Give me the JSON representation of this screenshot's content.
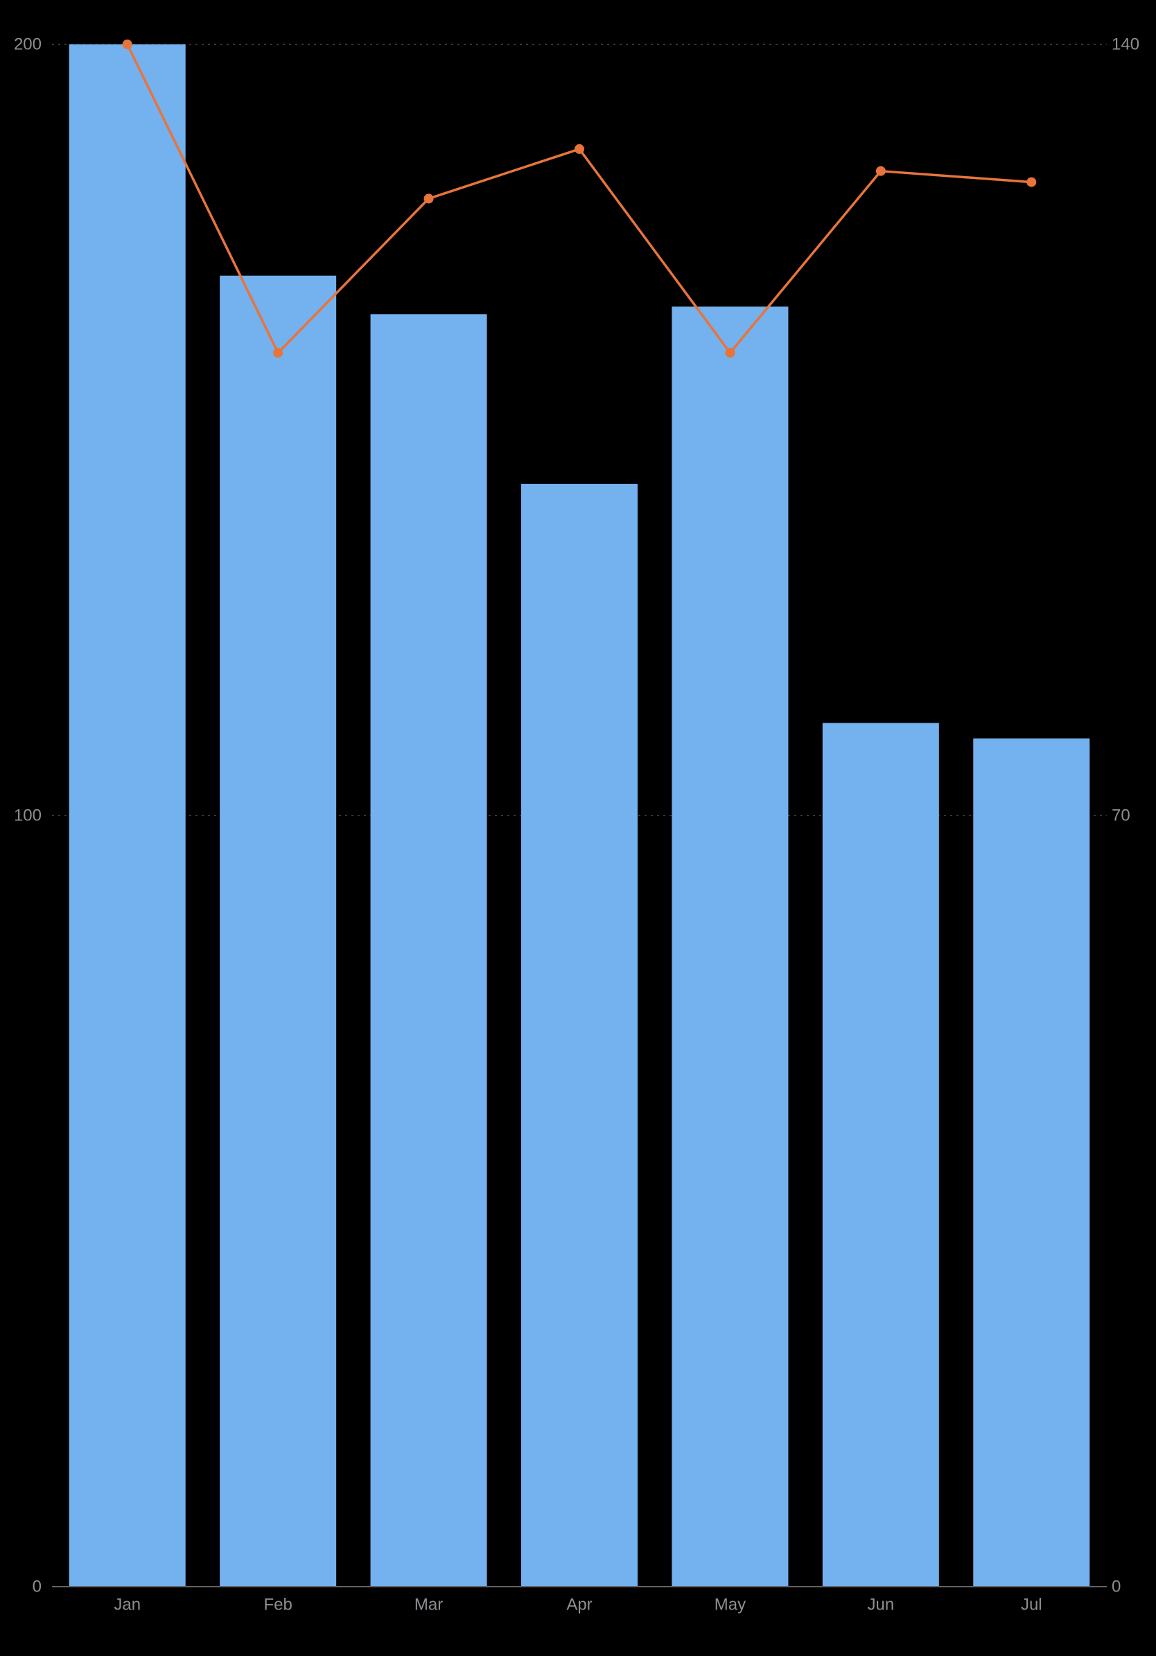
{
  "chart_data": {
    "type": "bar",
    "categories": [
      "Jan",
      "Feb",
      "Mar",
      "Apr",
      "May",
      "Jun",
      "Jul"
    ],
    "series": [
      {
        "type": "bar",
        "axis": "left",
        "values": [
          200,
          170,
          165,
          143,
          166,
          112,
          110
        ],
        "color": "#74b1ef"
      },
      {
        "type": "line",
        "axis": "right",
        "values": [
          140,
          112,
          126,
          130.5,
          112,
          128.5,
          127.5
        ],
        "color": "#e8743b"
      }
    ],
    "left_axis": {
      "ylim": [
        0,
        200
      ],
      "ticks": [
        0,
        100,
        200
      ],
      "tick_labels": [
        "0",
        "100",
        "200"
      ]
    },
    "right_axis": {
      "ylim": [
        0,
        140
      ],
      "ticks": [
        0,
        70,
        140
      ],
      "tick_labels": [
        "0",
        "70",
        "140"
      ]
    },
    "grid": "horizontal-dotted",
    "legend": "none",
    "title": "",
    "xlabel": "",
    "ylabel": ""
  },
  "colors": {
    "background": "#000000",
    "axis_text": "#8e8e93",
    "grid": "#48484a",
    "baseline": "#636366"
  }
}
